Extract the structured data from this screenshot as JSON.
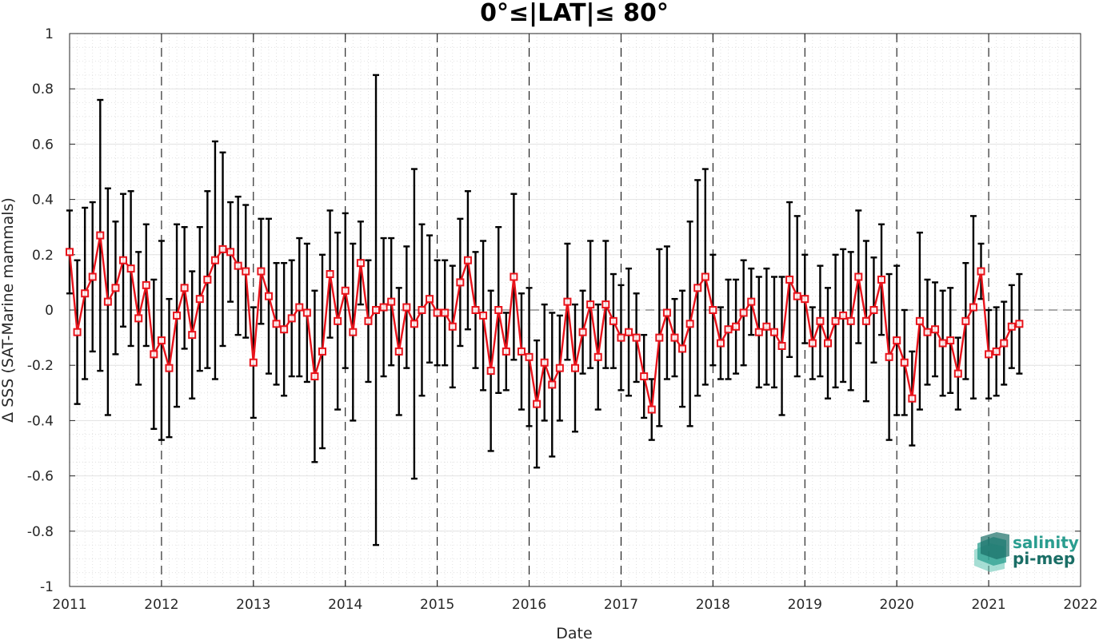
{
  "chart_data": {
    "type": "line",
    "title": "0°≤|LAT|≤ 80°",
    "xlabel": "Date",
    "ylabel": "Δ SSS (SAT-Marine mammals)",
    "xlim": [
      "2011-01-01",
      "2022-01-01"
    ],
    "ylim": [
      -1,
      1
    ],
    "x_tick_labels": [
      "2011",
      "2012",
      "2013",
      "2014",
      "2015",
      "2016",
      "2017",
      "2018",
      "2019",
      "2020",
      "2021",
      "2022"
    ],
    "y_ticks": [
      -1,
      -0.8,
      -0.6,
      -0.4,
      -0.2,
      0,
      0.2,
      0.4,
      0.6,
      0.8,
      1
    ],
    "y_tick_labels": [
      "-1",
      "-0.8",
      "-0.6",
      "-0.4",
      "-0.2",
      "0",
      "0.2",
      "0.4",
      "0.6",
      "0.8",
      "1"
    ],
    "grid": true,
    "year_dividers": "dashed vertical lines at each year boundary",
    "zero_line": "dashed horizontal line at 0",
    "colors": {
      "line": "#e8131b",
      "marker_edge": "#e8131b",
      "errorbar": "#000000",
      "logo_text": "#2a9d8f",
      "logo_text_dark": "#1a6e66"
    },
    "series": [
      {
        "type": "errorbar",
        "x_start": "2011-01",
        "x_step": "1 month",
        "values": [
          0.21,
          -0.08,
          0.06,
          0.12,
          0.27,
          0.03,
          0.08,
          0.18,
          0.15,
          -0.03,
          0.09,
          -0.16,
          -0.11,
          -0.21,
          -0.02,
          0.08,
          -0.09,
          0.04,
          0.11,
          0.18,
          0.22,
          0.21,
          0.16,
          0.14,
          -0.19,
          0.14,
          0.05,
          -0.05,
          -0.07,
          -0.03,
          0.01,
          -0.01,
          -0.24,
          -0.15,
          0.13,
          -0.04,
          0.07,
          -0.08,
          0.17,
          -0.04,
          0.0,
          0.01,
          0.03,
          -0.15,
          0.01,
          -0.05,
          0.0,
          0.04,
          -0.01,
          -0.01,
          -0.06,
          0.1,
          0.18,
          0.0,
          -0.02,
          -0.22,
          0.0,
          -0.15,
          0.12,
          -0.15,
          -0.17,
          -0.34,
          -0.19,
          -0.27,
          -0.21,
          0.03,
          -0.21,
          -0.08,
          0.02,
          -0.17,
          0.02,
          -0.04,
          -0.1,
          -0.08,
          -0.1,
          -0.24,
          -0.36,
          -0.1,
          -0.01,
          -0.1,
          -0.14,
          -0.05,
          0.08,
          0.12,
          0.0,
          -0.12,
          -0.07,
          -0.06,
          -0.01,
          0.03,
          -0.08,
          -0.06,
          -0.08,
          -0.13,
          0.11,
          0.05,
          0.04,
          -0.12,
          -0.04,
          -0.12,
          -0.04,
          -0.02,
          -0.04,
          0.12,
          -0.04,
          0.0,
          0.11,
          -0.17,
          -0.11,
          -0.19,
          -0.32,
          -0.04,
          -0.08,
          -0.07,
          -0.12,
          -0.11,
          -0.23,
          -0.04,
          0.01,
          0.14,
          -0.16,
          -0.15,
          -0.12,
          -0.06,
          -0.05
        ],
        "errors": [
          0.15,
          0.26,
          0.31,
          0.27,
          0.49,
          0.41,
          0.24,
          0.24,
          0.28,
          0.24,
          0.22,
          0.27,
          0.36,
          0.25,
          0.33,
          0.22,
          0.23,
          0.26,
          0.32,
          0.43,
          0.35,
          0.18,
          0.25,
          0.24,
          0.2,
          0.19,
          0.28,
          0.22,
          0.24,
          0.21,
          0.25,
          0.25,
          0.31,
          0.35,
          0.23,
          0.32,
          0.28,
          0.32,
          0.15,
          0.22,
          0.85,
          0.25,
          0.23,
          0.23,
          0.22,
          0.56,
          0.31,
          0.23,
          0.19,
          0.19,
          0.22,
          0.23,
          0.25,
          0.21,
          0.27,
          0.29,
          0.3,
          0.14,
          0.3,
          0.21,
          0.25,
          0.23,
          0.21,
          0.26,
          0.19,
          0.21,
          0.23,
          0.15,
          0.23,
          0.19,
          0.23,
          0.17,
          0.19,
          0.23,
          0.16,
          0.15,
          0.11,
          0.32,
          0.24,
          0.14,
          0.21,
          0.37,
          0.39,
          0.39,
          0.2,
          0.13,
          0.18,
          0.17,
          0.19,
          0.12,
          0.2,
          0.21,
          0.2,
          0.25,
          0.28,
          0.29,
          0.16,
          0.13,
          0.2,
          0.2,
          0.24,
          0.24,
          0.25,
          0.24,
          0.29,
          0.19,
          0.2,
          0.3,
          0.27,
          0.19,
          0.17,
          0.32,
          0.19,
          0.17,
          0.19,
          0.19,
          0.13,
          0.21,
          0.33,
          0.1,
          0.16,
          0.16,
          0.15,
          0.15,
          0.18
        ]
      }
    ]
  },
  "logo": {
    "line1": "salinity",
    "line2": "pi-mep"
  }
}
